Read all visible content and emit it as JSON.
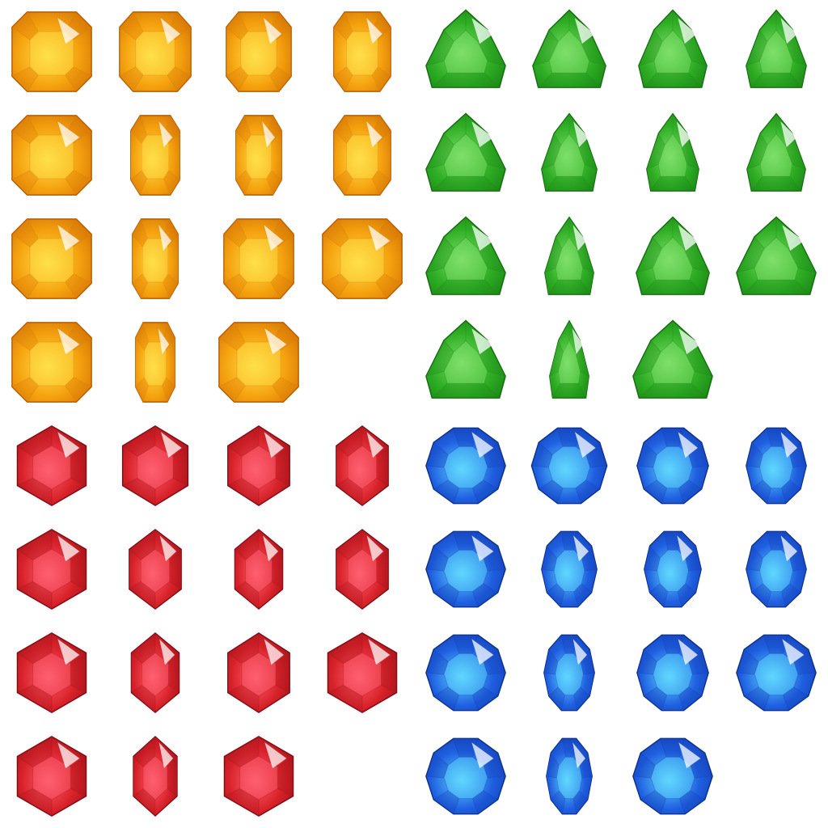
{
  "sprite_sheet": {
    "groups": [
      {
        "color": "amber",
        "palette": {
          "base": "#f5a20f",
          "light": "#ffe04a",
          "dark": "#d97a06",
          "edge": "#b35f05"
        },
        "frame_count": 15,
        "frames": [
          {
            "shape": "octagon",
            "depth": 1.0
          },
          {
            "shape": "octagon",
            "depth": 0.9
          },
          {
            "shape": "octagon",
            "depth": 0.82
          },
          {
            "shape": "octagon",
            "depth": 0.72
          },
          {
            "shape": "octagon",
            "depth": 1.0
          },
          {
            "shape": "octagon",
            "depth": 0.62
          },
          {
            "shape": "octagon",
            "depth": 0.58
          },
          {
            "shape": "octagon",
            "depth": 0.72
          },
          {
            "shape": "octagon",
            "depth": 1.0
          },
          {
            "shape": "octagon",
            "depth": 0.58
          },
          {
            "shape": "octagon",
            "depth": 0.88
          },
          {
            "shape": "octagon",
            "depth": 1.0
          },
          {
            "shape": "octagon",
            "depth": 1.0
          },
          {
            "shape": "octagon",
            "depth": 0.5
          },
          {
            "shape": "octagon",
            "depth": 1.0
          }
        ]
      },
      {
        "color": "emerald",
        "palette": {
          "base": "#2fae25",
          "light": "#7fe06a",
          "dark": "#1c8a16",
          "edge": "#136c10"
        },
        "frame_count": 15,
        "frames": [
          {
            "shape": "trillion",
            "depth": 1.0
          },
          {
            "shape": "trillion",
            "depth": 0.92
          },
          {
            "shape": "trillion",
            "depth": 0.86
          },
          {
            "shape": "trillion",
            "depth": 0.76
          },
          {
            "shape": "trillion",
            "depth": 1.0
          },
          {
            "shape": "trillion",
            "depth": 0.7
          },
          {
            "shape": "trillion",
            "depth": 0.66
          },
          {
            "shape": "trillion",
            "depth": 0.74
          },
          {
            "shape": "trillion",
            "depth": 1.0
          },
          {
            "shape": "trillion",
            "depth": 0.62
          },
          {
            "shape": "trillion",
            "depth": 0.92
          },
          {
            "shape": "trillion",
            "depth": 1.0
          },
          {
            "shape": "trillion",
            "depth": 1.0
          },
          {
            "shape": "trillion",
            "depth": 0.5
          },
          {
            "shape": "trillion",
            "depth": 1.0
          }
        ]
      },
      {
        "color": "ruby",
        "palette": {
          "base": "#d8222a",
          "light": "#ff6070",
          "dark": "#a8141c",
          "edge": "#7e0e14"
        },
        "frame_count": 15,
        "frames": [
          {
            "shape": "hexagon",
            "depth": 1.0
          },
          {
            "shape": "hexagon",
            "depth": 0.95
          },
          {
            "shape": "hexagon",
            "depth": 0.9
          },
          {
            "shape": "hexagon",
            "depth": 0.76
          },
          {
            "shape": "hexagon",
            "depth": 1.0
          },
          {
            "shape": "hexagon",
            "depth": 0.76
          },
          {
            "shape": "hexagon",
            "depth": 0.7
          },
          {
            "shape": "hexagon",
            "depth": 0.76
          },
          {
            "shape": "hexagon",
            "depth": 1.0
          },
          {
            "shape": "hexagon",
            "depth": 0.7
          },
          {
            "shape": "hexagon",
            "depth": 0.9
          },
          {
            "shape": "hexagon",
            "depth": 1.0
          },
          {
            "shape": "hexagon",
            "depth": 1.0
          },
          {
            "shape": "hexagon",
            "depth": 0.64
          },
          {
            "shape": "hexagon",
            "depth": 1.0
          }
        ]
      },
      {
        "color": "sapphire",
        "palette": {
          "base": "#1f5fe0",
          "light": "#5fd8ff",
          "dark": "#1442b8",
          "edge": "#0c2f8c"
        },
        "frame_count": 15,
        "frames": [
          {
            "shape": "decagon",
            "depth": 1.0
          },
          {
            "shape": "decagon",
            "depth": 0.95
          },
          {
            "shape": "decagon",
            "depth": 0.9
          },
          {
            "shape": "decagon",
            "depth": 0.76
          },
          {
            "shape": "decagon",
            "depth": 1.0
          },
          {
            "shape": "decagon",
            "depth": 0.7
          },
          {
            "shape": "decagon",
            "depth": 0.72
          },
          {
            "shape": "decagon",
            "depth": 0.76
          },
          {
            "shape": "decagon",
            "depth": 1.0
          },
          {
            "shape": "decagon",
            "depth": 0.64
          },
          {
            "shape": "decagon",
            "depth": 0.9
          },
          {
            "shape": "decagon",
            "depth": 1.0
          },
          {
            "shape": "decagon",
            "depth": 1.0
          },
          {
            "shape": "decagon",
            "depth": 0.58
          },
          {
            "shape": "decagon",
            "depth": 1.0
          }
        ]
      }
    ]
  }
}
